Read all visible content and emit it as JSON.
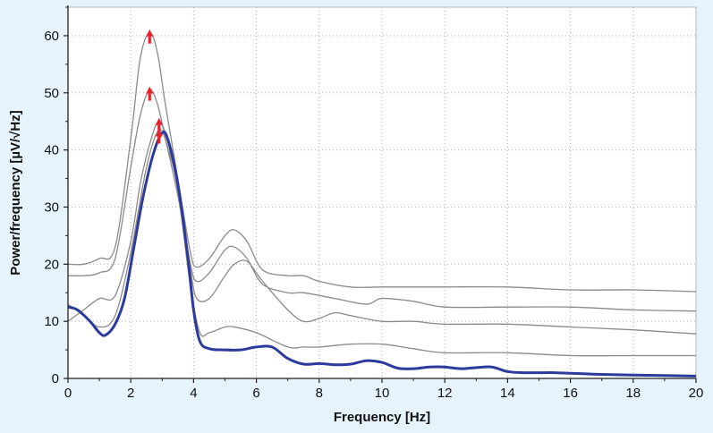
{
  "chart_data": {
    "type": "line",
    "title": "",
    "xlabel": "Frequency [Hz]",
    "ylabel": "Power/frequency [µV/√Hz]",
    "xlim": [
      0,
      20
    ],
    "ylim": [
      0,
      65
    ],
    "xticks": [
      0,
      2,
      4,
      6,
      8,
      10,
      12,
      14,
      16,
      18,
      20
    ],
    "yticks": [
      0,
      10,
      20,
      30,
      40,
      50,
      60
    ],
    "grid": true,
    "legend": "none",
    "colors": {
      "highlight": "#2b3a9c",
      "other": "#8a8a8a",
      "marker": "#e8202a",
      "background": "#e6f3fa",
      "plot_area": "#ffffff"
    },
    "series": [
      {
        "values": [
          [
            0,
            20
          ],
          [
            0.5,
            20
          ],
          [
            1,
            21
          ],
          [
            1.5,
            23
          ],
          [
            2,
            42
          ],
          [
            2.3,
            56
          ],
          [
            2.6,
            60.5
          ],
          [
            2.85,
            57
          ],
          [
            3.1,
            48
          ],
          [
            3.5,
            35
          ],
          [
            3.9,
            22
          ],
          [
            4.1,
            19.5
          ],
          [
            4.5,
            21
          ],
          [
            5,
            25
          ],
          [
            5.3,
            26
          ],
          [
            5.7,
            24
          ],
          [
            6.2,
            19
          ],
          [
            7,
            18
          ],
          [
            7.5,
            18
          ],
          [
            8,
            17
          ],
          [
            9,
            16
          ],
          [
            10,
            16
          ],
          [
            11,
            16
          ],
          [
            12,
            16
          ],
          [
            14,
            16
          ],
          [
            16,
            15.5
          ],
          [
            18,
            15.5
          ],
          [
            20,
            15.2
          ]
        ]
      },
      {
        "values": [
          [
            0,
            18
          ],
          [
            0.5,
            18
          ],
          [
            1,
            18.5
          ],
          [
            1.5,
            21
          ],
          [
            2,
            37
          ],
          [
            2.3,
            46
          ],
          [
            2.6,
            50.5
          ],
          [
            2.85,
            48
          ],
          [
            3.1,
            42
          ],
          [
            3.5,
            32
          ],
          [
            3.9,
            20
          ],
          [
            4.1,
            17
          ],
          [
            4.5,
            18.5
          ],
          [
            5,
            22.5
          ],
          [
            5.3,
            23
          ],
          [
            5.7,
            21
          ],
          [
            6.2,
            16.5
          ],
          [
            7,
            15
          ],
          [
            7.5,
            15
          ],
          [
            8.5,
            14
          ],
          [
            9.5,
            13
          ],
          [
            10,
            14
          ],
          [
            11,
            13.5
          ],
          [
            12,
            12.5
          ],
          [
            14,
            12.5
          ],
          [
            16,
            12.5
          ],
          [
            18,
            12
          ],
          [
            20,
            11.8
          ]
        ]
      },
      {
        "values": [
          [
            0,
            10
          ],
          [
            0.5,
            12
          ],
          [
            1,
            14
          ],
          [
            1.5,
            14.5
          ],
          [
            2,
            24
          ],
          [
            2.3,
            34
          ],
          [
            2.6,
            41
          ],
          [
            2.9,
            45
          ],
          [
            3.2,
            41
          ],
          [
            3.5,
            33
          ],
          [
            3.9,
            19
          ],
          [
            4.1,
            14
          ],
          [
            4.5,
            14
          ],
          [
            5,
            18
          ],
          [
            5.3,
            20
          ],
          [
            5.7,
            20.5
          ],
          [
            6.2,
            17
          ],
          [
            7,
            12
          ],
          [
            7.5,
            10
          ],
          [
            8,
            10.5
          ],
          [
            8.5,
            11.5
          ],
          [
            9,
            11
          ],
          [
            10,
            10
          ],
          [
            11,
            10
          ],
          [
            12,
            9.5
          ],
          [
            14,
            9.5
          ],
          [
            16,
            9
          ],
          [
            18,
            8.5
          ],
          [
            20,
            7.8
          ]
        ]
      },
      {
        "values": [
          [
            0,
            13
          ],
          [
            0.5,
            11
          ],
          [
            1,
            9
          ],
          [
            1.5,
            11
          ],
          [
            2,
            22
          ],
          [
            2.5,
            37
          ],
          [
            2.9,
            43.5
          ],
          [
            3.2,
            40
          ],
          [
            3.5,
            33
          ],
          [
            3.9,
            16
          ],
          [
            4.2,
            8
          ],
          [
            4.5,
            8
          ],
          [
            5,
            9
          ],
          [
            5.3,
            9
          ],
          [
            6,
            8
          ],
          [
            7,
            5.5
          ],
          [
            7.5,
            5.5
          ],
          [
            8,
            5.5
          ],
          [
            9,
            6
          ],
          [
            10,
            6
          ],
          [
            11,
            5.2
          ],
          [
            12,
            4.5
          ],
          [
            14,
            4.5
          ],
          [
            16,
            4
          ],
          [
            18,
            4
          ],
          [
            20,
            4
          ]
        ]
      },
      {
        "highlight": true,
        "values": [
          [
            0,
            12.5
          ],
          [
            0.3,
            12
          ],
          [
            0.7,
            10
          ],
          [
            1,
            8
          ],
          [
            1.2,
            7.6
          ],
          [
            1.5,
            9.5
          ],
          [
            1.8,
            14
          ],
          [
            2.1,
            23
          ],
          [
            2.4,
            32
          ],
          [
            2.7,
            39
          ],
          [
            3,
            43
          ],
          [
            3.2,
            41.5
          ],
          [
            3.5,
            34
          ],
          [
            3.8,
            22
          ],
          [
            4,
            12
          ],
          [
            4.2,
            6.5
          ],
          [
            4.5,
            5.2
          ],
          [
            5,
            5
          ],
          [
            5.5,
            5
          ],
          [
            6,
            5.5
          ],
          [
            6.5,
            5.5
          ],
          [
            7,
            3.5
          ],
          [
            7.5,
            2.5
          ],
          [
            8,
            2.6
          ],
          [
            8.5,
            2.4
          ],
          [
            9,
            2.5
          ],
          [
            9.5,
            3.1
          ],
          [
            10,
            2.8
          ],
          [
            10.5,
            1.8
          ],
          [
            11,
            1.7
          ],
          [
            11.5,
            2
          ],
          [
            12,
            2
          ],
          [
            12.5,
            1.7
          ],
          [
            13,
            1.9
          ],
          [
            13.5,
            2
          ],
          [
            14,
            1.2
          ],
          [
            14.5,
            1
          ],
          [
            15,
            1
          ],
          [
            15.5,
            1
          ],
          [
            16,
            0.9
          ],
          [
            16.5,
            0.8
          ],
          [
            17,
            0.7
          ],
          [
            18,
            0.6
          ],
          [
            19,
            0.5
          ],
          [
            20,
            0.4
          ]
        ]
      }
    ],
    "markers": [
      {
        "x": 2.6,
        "y": 60.5
      },
      {
        "x": 2.6,
        "y": 50.5
      },
      {
        "x": 2.9,
        "y": 45
      },
      {
        "x": 2.9,
        "y": 43
      }
    ]
  }
}
